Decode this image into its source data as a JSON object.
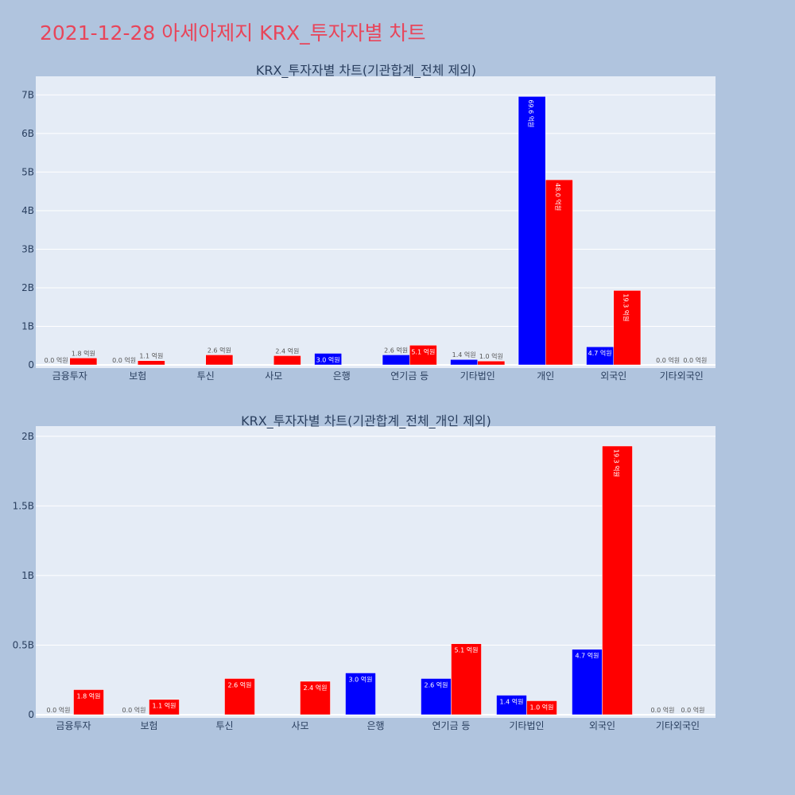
{
  "page": {
    "title": "2021-12-28 아세아제지 KRX_투자자별 차트"
  },
  "colors": {
    "background": "#b0c4de",
    "plot_bg": "#e5ecf6",
    "grid": "#ffffff",
    "sell": "#0000ff",
    "buy": "#ff0000",
    "title": "#e8455a",
    "axis_text": "#2a3f5f"
  },
  "chart_data": [
    {
      "type": "bar",
      "title": "KRX_투자자별 차트(기관합계_전체 제외)",
      "categories": [
        "금융투자",
        "보험",
        "투신",
        "사모",
        "은행",
        "연기금 등",
        "기타법인",
        "개인",
        "외국인",
        "기타외국인"
      ],
      "ylim": [
        0,
        7400000000
      ],
      "yticks": [
        0,
        1000000000,
        2000000000,
        3000000000,
        4000000000,
        5000000000,
        6000000000,
        7000000000
      ],
      "ytick_labels": [
        "0",
        "1B",
        "2B",
        "3B",
        "4B",
        "5B",
        "6B",
        "7B"
      ],
      "grid": true,
      "series": [
        {
          "color": "#0000ff",
          "values": [
            0,
            0,
            0,
            0,
            300000000,
            260000000,
            140000000,
            6960000000,
            470000000,
            0
          ],
          "labels": [
            "0.0 억원",
            "0.0 억원",
            "",
            "",
            "3.0 억원",
            "2.6 억원",
            "1.4 억원",
            "69.6 억원",
            "4.7 억원",
            "0.0 억원"
          ]
        },
        {
          "color": "#ff0000",
          "values": [
            180000000,
            110000000,
            260000000,
            240000000,
            0,
            510000000,
            100000000,
            4800000000,
            1930000000,
            0
          ],
          "labels": [
            "1.8 억원",
            "1.1 억원",
            "2.6 억원",
            "2.4 억원",
            "",
            "5.1 억원",
            "1.0 억원",
            "48.0 억원",
            "19.3 억원",
            "0.0 억원"
          ]
        }
      ]
    },
    {
      "type": "bar",
      "title": "KRX_투자자별 차트(기관합계_전체_개인 제외)",
      "categories": [
        "금융투자",
        "보험",
        "투신",
        "사모",
        "은행",
        "연기금 등",
        "기타법인",
        "외국인",
        "기타외국인"
      ],
      "ylim": [
        0,
        2050000000
      ],
      "yticks": [
        0,
        500000000,
        1000000000,
        1500000000,
        2000000000
      ],
      "ytick_labels": [
        "0",
        "0.5B",
        "1B",
        "1.5B",
        "2B"
      ],
      "grid": true,
      "series": [
        {
          "color": "#0000ff",
          "values": [
            0,
            0,
            0,
            0,
            300000000,
            260000000,
            140000000,
            470000000,
            0
          ],
          "labels": [
            "0.0 억원",
            "0.0 억원",
            "",
            "",
            "3.0 억원",
            "2.6 억원",
            "1.4 억원",
            "4.7 억원",
            "0.0 억원"
          ]
        },
        {
          "color": "#ff0000",
          "values": [
            180000000,
            110000000,
            260000000,
            240000000,
            0,
            510000000,
            100000000,
            1930000000,
            0
          ],
          "labels": [
            "1.8 억원",
            "1.1 억원",
            "2.6 억원",
            "2.4 억원",
            "",
            "5.1 억원",
            "1.0 억원",
            "19.3 억원",
            "0.0 억원"
          ]
        }
      ]
    }
  ]
}
